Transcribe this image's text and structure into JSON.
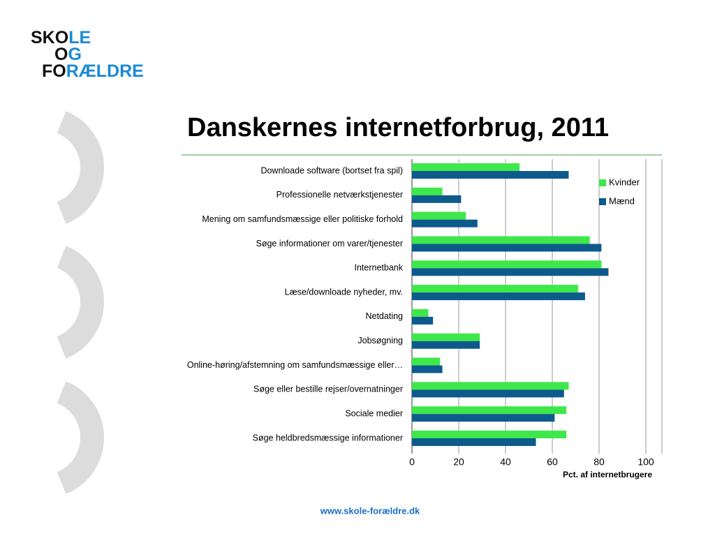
{
  "logo": {
    "lines": [
      [
        "SKO",
        "LE"
      ],
      [
        "O",
        "G"
      ],
      [
        "FO",
        "RÆLDRE"
      ]
    ]
  },
  "footer": "www.skole-forældre.dk",
  "chart_data": {
    "type": "hbar",
    "title": "Danskernes internetforbrug, 2011",
    "categories": [
      "Downloade software (bortset fra spil)",
      "Professionelle netværkstjenester",
      "Mening om samfundsmæssige eller politiske forhold",
      "Søge informationer om varer/tjenester",
      "Internetbank",
      "Læse/downloade nyheder, mv.",
      "Netdating",
      "Jobsøgning",
      "Online-høring/afstemning om samfundsmæssige eller…",
      "Søge eller bestille rejser/overnatninger",
      "Sociale medier",
      "Søge heldbredsmæssige informationer"
    ],
    "series": [
      {
        "name": "Kvinder",
        "color": "#3ee84a",
        "values": [
          46,
          13,
          23,
          76,
          81,
          71,
          7,
          29,
          12,
          67,
          66,
          66
        ]
      },
      {
        "name": "Mænd",
        "color": "#0d5a8c",
        "values": [
          67,
          21,
          28,
          81,
          84,
          74,
          9,
          29,
          13,
          65,
          61,
          53
        ]
      }
    ],
    "xlim": [
      0,
      100
    ],
    "xticks": [
      0,
      20,
      40,
      60,
      80,
      100
    ],
    "grid": true,
    "xlabel": "Pct. af internetbrugere",
    "legend": "upper right"
  }
}
